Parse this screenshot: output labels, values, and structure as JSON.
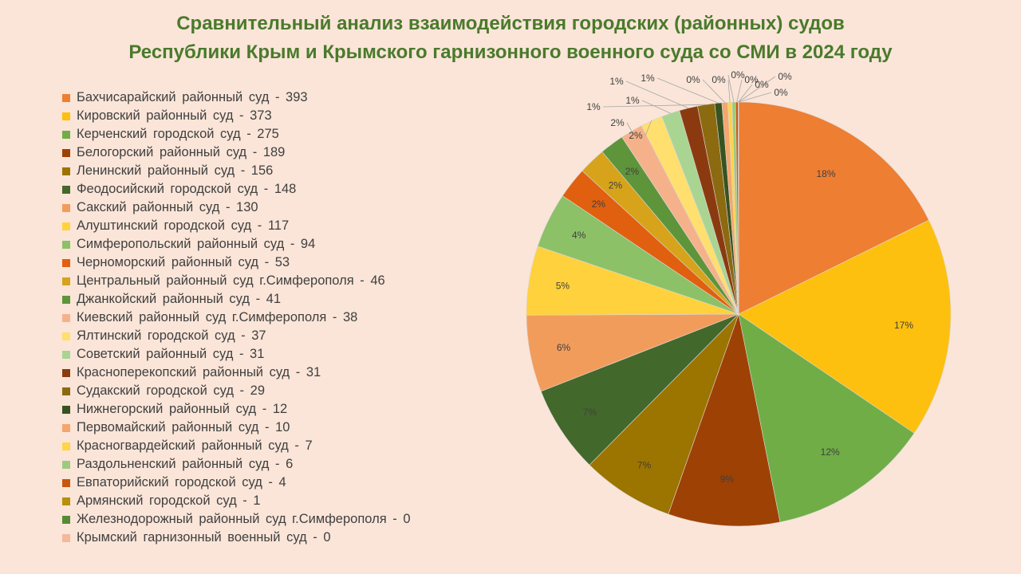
{
  "chart_data": {
    "type": "pie",
    "title_line1": "Сравнительный анализ взаимодействия городских (районных) судов",
    "title_line2": "Республики Крым и Крымского гарнизонного военного суда со СМИ в 2024 году",
    "legend_position": "left",
    "slices": [
      {
        "label": "Бахчисарайский  районный  суд - 393",
        "value": 393,
        "pct_label": "18%",
        "color": "#ee7e32"
      },
      {
        "label": "Кировский  районный  суд - 373",
        "value": 373,
        "pct_label": "17%",
        "color": "#fdc00e"
      },
      {
        "label": "Керченский  городской  суд - 275",
        "value": 275,
        "pct_label": "12%",
        "color": "#70ad47"
      },
      {
        "label": "Белогорский  районный  суд - 189",
        "value": 189,
        "pct_label": "9%",
        "color": "#9e4104"
      },
      {
        "label": "Ленинский  районный  суд - 156",
        "value": 156,
        "pct_label": "7%",
        "color": "#9c7400"
      },
      {
        "label": "Феодосийский  городской  суд - 148",
        "value": 148,
        "pct_label": "7%",
        "color": "#43682b"
      },
      {
        "label": "Сакский  районный  суд - 130",
        "value": 130,
        "pct_label": "6%",
        "color": "#f29c5c"
      },
      {
        "label": "Алуштинский  городской  суд - 117",
        "value": 117,
        "pct_label": "5%",
        "color": "#ffd23d"
      },
      {
        "label": "Симферопольский  районный  суд - 94",
        "value": 94,
        "pct_label": "4%",
        "color": "#8cc168"
      },
      {
        "label": "Черноморский  районный  суд - 53",
        "value": 53,
        "pct_label": "2%",
        "color": "#e0600f"
      },
      {
        "label": "Центральный  районный  суд г.Симферополя  - 46",
        "value": 46,
        "pct_label": "2%",
        "color": "#d6a31a"
      },
      {
        "label": "Джанкойский  районный  суд - 41",
        "value": 41,
        "pct_label": "2%",
        "color": "#5e943a"
      },
      {
        "label": "Киевский  районный  суд г.Симферополя  - 38",
        "value": 38,
        "pct_label": "2%",
        "color": "#f5b28a"
      },
      {
        "label": "Ялтинский  городской  суд - 37",
        "value": 37,
        "pct_label": "2%",
        "color": "#ffdf6e"
      },
      {
        "label": "Советский  районный  суд - 31",
        "value": 31,
        "pct_label": "1%",
        "color": "#aad492"
      },
      {
        "label": "Красноперекопский  районный  суд - 31",
        "value": 31,
        "pct_label": "1%",
        "color": "#8b3a10"
      },
      {
        "label": "Судакский  городской  суд - 29",
        "value": 29,
        "pct_label": "1%",
        "color": "#8c6a10"
      },
      {
        "label": "Нижнегорский  районный  суд - 12",
        "value": 12,
        "pct_label": "1%",
        "color": "#38531f"
      },
      {
        "label": "Первомайский  районный  суд - 10",
        "value": 10,
        "pct_label": "0%",
        "color": "#f4a66e"
      },
      {
        "label": "Красногвардейский  районный  суд - 7",
        "value": 7,
        "pct_label": "0%",
        "color": "#ffd447"
      },
      {
        "label": "Раздольненский  районный  суд - 6",
        "value": 6,
        "pct_label": "0%",
        "color": "#9ccb7f"
      },
      {
        "label": "Евпаторийский  городской  суд - 4",
        "value": 4,
        "pct_label": "0%",
        "color": "#c9560f"
      },
      {
        "label": "Армянский  городской  суд - 1",
        "value": 1,
        "pct_label": "0%",
        "color": "#b8900a"
      },
      {
        "label": "Железнодорожный  районный  суд г.Симферополя  - 0",
        "value": 0,
        "pct_label": "0%",
        "color": "#558b34"
      },
      {
        "label": "Крымский  гарнизонный  военный  суд - 0",
        "value": 0,
        "pct_label": "0%",
        "color": "#f5b89a"
      }
    ]
  }
}
